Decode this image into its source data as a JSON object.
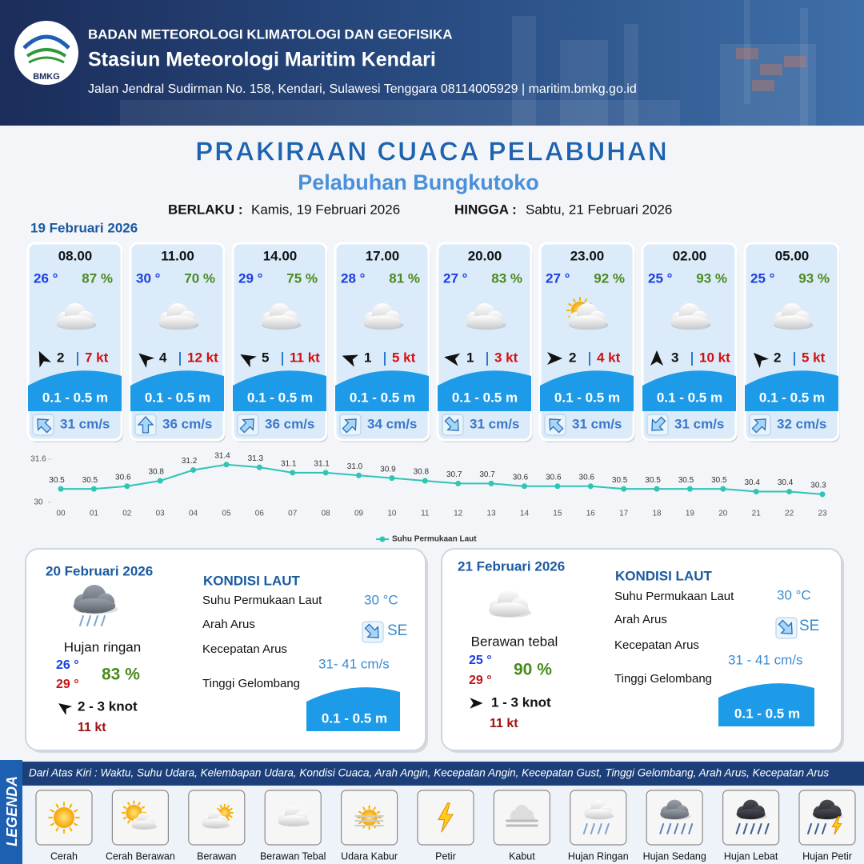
{
  "header": {
    "logo": "BMKG",
    "agency": "BADAN METEOROLOGI KLIMATOLOGI DAN GEOFISIKA",
    "station": "Stasiun Meteorologi Maritim Kendari",
    "address": "Jalan Jendral Sudirman No. 158, Kendari, Sulawesi Tenggara  08114005929 | maritim.bmkg.go.id"
  },
  "title": "PRAKIRAAN CUACA PELABUHAN",
  "subtitle": "Pelabuhan Bungkutoko",
  "validity": {
    "from_label": "BERLAKU :",
    "from": "Kamis, 19 Februari 2026",
    "to_label": "HINGGA :",
    "to": "Sabtu, 21 Februari 2026"
  },
  "day1": {
    "date": "19 Februari 2026",
    "cards": [
      {
        "time": "08.00",
        "temp": "26 °",
        "humidity": "87 %",
        "wind": "2",
        "gust": "7 kt",
        "wave": "0.1 - 0.5 m",
        "current": "31 cm/s"
      },
      {
        "time": "11.00",
        "temp": "30 °",
        "humidity": "70 %",
        "wind": "4",
        "gust": "12 kt",
        "wave": "0.1 - 0.5 m",
        "current": "36 cm/s"
      },
      {
        "time": "14.00",
        "temp": "29 °",
        "humidity": "75 %",
        "wind": "5",
        "gust": "11 kt",
        "wave": "0.1 - 0.5 m",
        "current": "36 cm/s"
      },
      {
        "time": "17.00",
        "temp": "28 °",
        "humidity": "81 %",
        "wind": "1",
        "gust": "5 kt",
        "wave": "0.1 - 0.5 m",
        "current": "34 cm/s"
      },
      {
        "time": "20.00",
        "temp": "27 °",
        "humidity": "83 %",
        "wind": "1",
        "gust": "3 kt",
        "wave": "0.1 - 0.5 m",
        "current": "31 cm/s"
      },
      {
        "time": "23.00",
        "temp": "27 °",
        "humidity": "92 %",
        "wind": "2",
        "gust": "4 kt",
        "wave": "0.1 - 0.5 m",
        "current": "31 cm/s"
      },
      {
        "time": "02.00",
        "temp": "25 °",
        "humidity": "93 %",
        "wind": "3",
        "gust": "10 kt",
        "wave": "0.1 - 0.5 m",
        "current": "31 cm/s"
      },
      {
        "time": "05.00",
        "temp": "25 °",
        "humidity": "93 %",
        "wind": "2",
        "gust": "5 kt",
        "wave": "0.1 - 0.5 m",
        "current": "32 cm/s"
      }
    ]
  },
  "chart_data": {
    "type": "line",
    "categories": [
      "00",
      "01",
      "02",
      "03",
      "04",
      "05",
      "06",
      "07",
      "08",
      "09",
      "10",
      "11",
      "12",
      "13",
      "14",
      "15",
      "16",
      "17",
      "18",
      "19",
      "20",
      "21",
      "22",
      "23"
    ],
    "series": [
      {
        "name": "Suhu Permukaan Laut",
        "color": "#2ec4b6",
        "values": [
          30.5,
          30.5,
          30.6,
          30.8,
          31.2,
          31.4,
          31.3,
          31.1,
          31.1,
          31.0,
          30.9,
          30.8,
          30.7,
          30.7,
          30.6,
          30.6,
          30.6,
          30.5,
          30.5,
          30.5,
          30.5,
          30.4,
          30.4,
          30.3
        ],
        "value_labels": [
          "30.5",
          "30.5",
          "30.6",
          "30.8",
          "31.2",
          "31.4",
          "31.3",
          "31.1",
          "31.1",
          "31.0",
          "30.9",
          "30.8",
          "30.7",
          "30.7",
          "30.6",
          "30.6",
          "30.6",
          "30.5",
          "30.5",
          "30.5",
          "30.5",
          "30.4",
          "30.4",
          "30.3"
        ]
      }
    ],
    "ylim": [
      30,
      31.6
    ],
    "yticks": [
      30,
      31.6
    ],
    "grid": false,
    "legend": "bottom"
  },
  "panels": [
    {
      "date": "20 Februari 2026",
      "condition": "Hujan ringan",
      "temp_min": "26 °",
      "temp_max": "29 °",
      "humidity": "83 %",
      "wind": "2  - 3 knot",
      "gust": "11 kt",
      "sea_title": "KONDISI LAUT",
      "sst_label": "Suhu Permukaan Laut",
      "sst": "30 °C",
      "dir_label": "Arah Arus",
      "dir": "SE",
      "speed_label": "Kecepatan Arus",
      "speed": "31- 41 cm/s",
      "wave_label": "Tinggi Gelombang",
      "wave": "0.1 - 0.5 m"
    },
    {
      "date": "21 Februari 2026",
      "condition": "Berawan tebal",
      "temp_min": "25 °",
      "temp_max": "29 °",
      "humidity": "90 %",
      "wind": "1 - 3 knot",
      "gust": "11 kt",
      "sea_title": "KONDISI LAUT",
      "sst_label": "Suhu Permukaan Laut",
      "sst": "30 °C",
      "dir_label": "Arah Arus",
      "dir": "SE",
      "speed_label": "Kecepatan Arus",
      "speed": "31 - 41 cm/s",
      "wave_label": "Tinggi Gelombang",
      "wave": "0.1 - 0.5 m"
    }
  ],
  "legend": {
    "title": "LEGENDA",
    "description": "Dari Atas Kiri : Waktu, Suhu Udara, Kelembapan Udara, Kondisi Cuaca, Arah Angin, Kecepatan Angin, Kecepatan Gust, Tinggi Gelombang, Arah Arus, Kecepatan Arus",
    "items": [
      "Cerah",
      "Cerah Berawan",
      "Berawan",
      "Berawan Tebal",
      "Udara Kabur",
      "Petir",
      "Kabut",
      "Hujan Ringan",
      "Hujan Sedang",
      "Hujan Lebat",
      "Hujan Petir"
    ]
  }
}
